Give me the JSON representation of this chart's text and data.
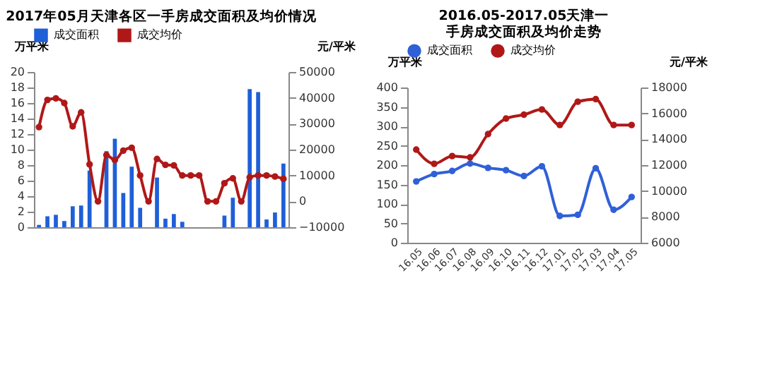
{
  "chart_data": [
    {
      "type": "bar",
      "title": "2017年05月天津各区一手房成交面积及均价情况",
      "ylabel": "万平米",
      "y2label": "元/平米",
      "legend": "top",
      "grid": false,
      "marker": "circle",
      "categories": [
        null,
        null,
        null,
        null,
        null,
        null,
        null,
        null,
        null,
        null,
        null,
        null,
        null,
        null,
        null,
        null,
        null,
        null,
        null,
        null,
        null,
        null,
        null,
        null,
        null,
        null,
        null,
        null,
        null,
        null
      ],
      "ylim": [
        0,
        20
      ],
      "yticks": [
        0,
        2,
        4,
        6,
        8,
        10,
        12,
        14,
        16,
        18,
        20
      ],
      "y2lim": [
        -10000,
        50000
      ],
      "y2ticks": [
        -10000,
        0,
        10000,
        20000,
        30000,
        40000,
        50000
      ],
      "series": [
        {
          "name": "成交面积",
          "color": "#1f5fd8",
          "values": [
            0.3,
            1.4,
            1.6,
            0.8,
            2.7,
            2.8,
            7.3,
            0,
            9.8,
            11.4,
            4.4,
            7.8,
            2.5,
            0,
            6.4,
            1.1,
            1.7,
            0.7,
            0,
            0,
            0,
            0,
            1.5,
            3.8,
            0,
            17.8,
            17.4,
            1.0,
            1.9,
            8.2
          ]
        },
        {
          "name": "成交均价",
          "type": "line",
          "axis": "y2",
          "color": "#b01818",
          "values": [
            28700,
            39200,
            39800,
            38000,
            29000,
            34400,
            14300,
            0,
            17900,
            16000,
            19600,
            20700,
            10000,
            0,
            16400,
            14100,
            13900,
            10000,
            10000,
            10000,
            0,
            0,
            7000,
            8900,
            0,
            9300,
            10000,
            10000,
            9600,
            8700
          ]
        }
      ]
    },
    {
      "type": "line",
      "title": "2016.05-2017.05天津一手房成交面积及均价走势",
      "ylabel": "万平米",
      "y2label": "元/平米",
      "legend": "top",
      "grid": false,
      "marker": "circle",
      "categories": [
        "16.05",
        "16.06",
        "16.07",
        "16.08",
        "16.09",
        "16.10",
        "16.11",
        "16.12",
        "17.01",
        "17.02",
        "17.03",
        "17.04",
        "17.05"
      ],
      "ylim": [
        0,
        400
      ],
      "yticks": [
        0,
        50,
        100,
        150,
        200,
        250,
        300,
        350,
        400
      ],
      "y2lim": [
        6000,
        18000
      ],
      "y2ticks": [
        6000,
        8000,
        10000,
        12000,
        14000,
        16000,
        18000
      ],
      "series": [
        {
          "name": "成交面积",
          "color": "#3060d8",
          "values": [
            158,
            177,
            185,
            204,
            193,
            187,
            172,
            197,
            69,
            72,
            192,
            85,
            118
          ]
        },
        {
          "name": "成交均价",
          "axis": "y2",
          "color": "#b01818",
          "values": [
            13200,
            12100,
            12700,
            12600,
            14400,
            15600,
            15900,
            16300,
            15100,
            16900,
            17100,
            15100,
            15100
          ]
        }
      ]
    }
  ]
}
